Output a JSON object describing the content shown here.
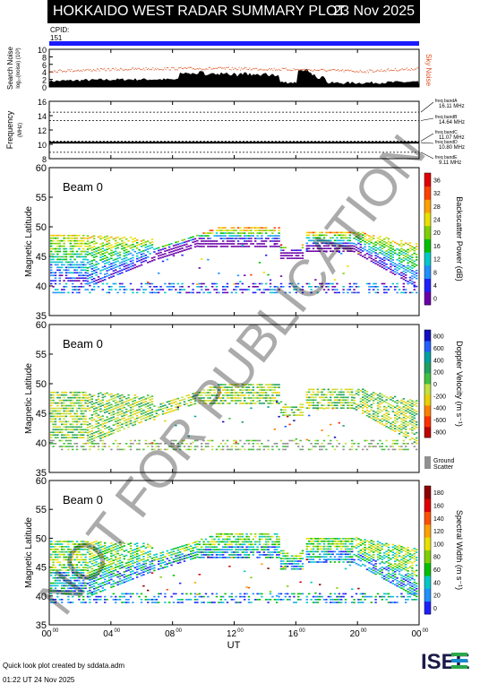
{
  "header": {
    "title": "HOKKAIDO WEST RADAR SUMMARY PLOT",
    "date": "23 Nov 2025",
    "cpid_label": "CPID:",
    "cpid_value": "151"
  },
  "watermark": "NOT FOR PUBLICATION",
  "colors": {
    "cpid_bar": "#1a1aff",
    "noise_sky": "#e05020",
    "noise_search": "#000000"
  },
  "chart_data": [
    {
      "type": "area",
      "id": "noise",
      "ylabel": "Search Noise",
      "ylabel_unit": "log₁₀(noise) (10³)",
      "right_label": "Sky Noise",
      "ylim": [
        0,
        10
      ],
      "yticks": [
        "10",
        "8",
        "6",
        "4",
        "2",
        "0"
      ]
    },
    {
      "type": "line",
      "id": "frequency",
      "ylabel": "Frequency",
      "ylabel_unit": "(MHz)",
      "ylim": [
        8,
        18
      ],
      "yticks": [
        "16",
        "14",
        "12",
        "10",
        "8"
      ],
      "freq_bands": [
        {
          "name": "freq bandA",
          "value": "16.11 MHz"
        },
        {
          "name": "freq bandB",
          "value": "14.64 MHz"
        },
        {
          "name": "freq bandC",
          "value": "11.07 MHz"
        },
        {
          "name": "freq bandD",
          "value": "10.80 MHz"
        },
        {
          "name": "freq bandE",
          "value": "9.11 MHz"
        }
      ]
    },
    {
      "type": "heatmap",
      "id": "power",
      "beam": "Beam  0",
      "ylabel": "Magnetic Latitude",
      "ylim": [
        35,
        60
      ],
      "yticks": [
        "60",
        "55",
        "50",
        "45",
        "40",
        "35"
      ],
      "colorbar_label": "Backscatter Power (dB)",
      "colorbar_ticks": [
        "36",
        "32",
        "28",
        "24",
        "20",
        "16",
        "12",
        "8",
        "4",
        "0"
      ]
    },
    {
      "type": "heatmap",
      "id": "velocity",
      "beam": "Beam  0",
      "ylabel": "Magnetic Latitude",
      "ylim": [
        35,
        60
      ],
      "yticks": [
        "60",
        "55",
        "50",
        "45",
        "40",
        "35"
      ],
      "colorbar_label": "Doppler Velocity (m s⁻¹)",
      "colorbar_ticks": [
        "800",
        "600",
        "400",
        "200",
        "0",
        "-200",
        "-400",
        "-600",
        "-800"
      ],
      "ground_scatter_label_1": "Ground",
      "ground_scatter_label_2": "Scatter"
    },
    {
      "type": "heatmap",
      "id": "width",
      "beam": "Beam  0",
      "ylabel": "Magnetic Latitude",
      "ylim": [
        35,
        60
      ],
      "yticks": [
        "60",
        "55",
        "50",
        "45",
        "40",
        "35"
      ],
      "colorbar_label": "Spectral Width (m s⁻¹)",
      "colorbar_ticks": [
        "180",
        "160",
        "140",
        "120",
        "100",
        "80",
        "60",
        "40",
        "20",
        "0"
      ]
    }
  ],
  "xaxis": {
    "label": "UT",
    "ticks": [
      {
        "h": "00",
        "m": "00"
      },
      {
        "h": "04",
        "m": "00"
      },
      {
        "h": "08",
        "m": "00"
      },
      {
        "h": "12",
        "m": "00"
      },
      {
        "h": "16",
        "m": "00"
      },
      {
        "h": "20",
        "m": "00"
      },
      {
        "h": "00",
        "m": "00"
      }
    ]
  },
  "footer": {
    "line1": "Quick look plot created by sddata.adm",
    "line2": "01:22 UT 24 Nov 2025"
  },
  "logo": "ISEE"
}
